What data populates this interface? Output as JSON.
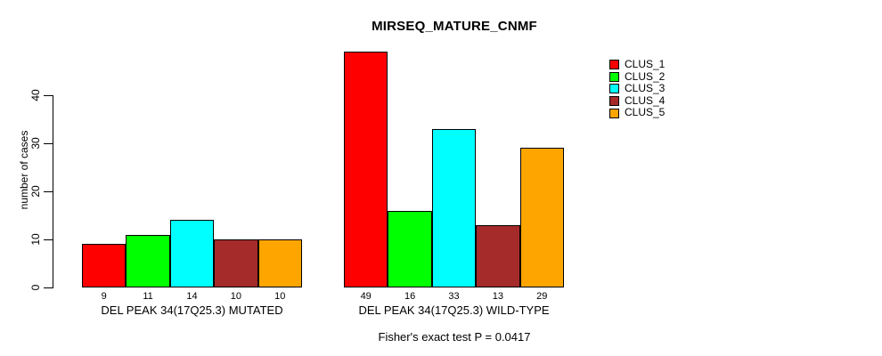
{
  "chart_data": {
    "type": "bar",
    "title": "MIRSEQ_MATURE_CNMF",
    "xlabel": "",
    "ylabel": "number of cases",
    "ylim": [
      0,
      40
    ],
    "yticks": [
      0,
      10,
      20,
      30,
      40
    ],
    "grid": false,
    "legend_position": "top-right-inside",
    "categories": [
      "DEL PEAK 34(17Q25.3) MUTATED",
      "DEL PEAK 34(17Q25.3) WILD-TYPE"
    ],
    "series": [
      {
        "name": "CLUS_1",
        "color": "#FF0000",
        "values": [
          9,
          49
        ]
      },
      {
        "name": "CLUS_2",
        "color": "#00FF00",
        "values": [
          11,
          16
        ]
      },
      {
        "name": "CLUS_3",
        "color": "#00FFFF",
        "values": [
          14,
          33
        ]
      },
      {
        "name": "CLUS_4",
        "color": "#A52A2A",
        "values": [
          10,
          13
        ]
      },
      {
        "name": "CLUS_5",
        "color": "#FFA500",
        "values": [
          10,
          29
        ]
      }
    ],
    "annotation": "Fisher's exact test P = 0.0417"
  }
}
